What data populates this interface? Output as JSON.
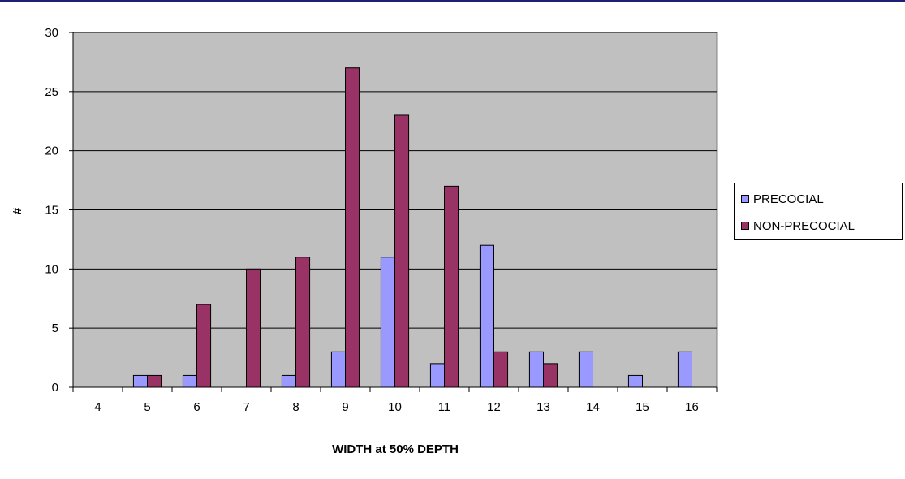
{
  "chart_data": {
    "type": "bar",
    "title": "",
    "xlabel": "WIDTH at 50% DEPTH",
    "ylabel": "#",
    "ylim": [
      0,
      30
    ],
    "yticks": [
      0,
      5,
      10,
      15,
      20,
      25,
      30
    ],
    "grid": true,
    "legend_position": "right",
    "categories": [
      "4",
      "5",
      "6",
      "7",
      "8",
      "9",
      "10",
      "11",
      "12",
      "13",
      "14",
      "15",
      "16"
    ],
    "series": [
      {
        "name": "PRECOCIAL",
        "color": "#9999ff",
        "values": [
          0,
          1,
          1,
          0,
          1,
          3,
          11,
          2,
          12,
          3,
          3,
          1,
          3
        ]
      },
      {
        "name": "NON-PRECOCIAL",
        "color": "#993366",
        "values": [
          0,
          1,
          7,
          10,
          11,
          27,
          23,
          17,
          3,
          2,
          0,
          0,
          0
        ]
      }
    ],
    "plot_background": "#c0c0c0"
  }
}
